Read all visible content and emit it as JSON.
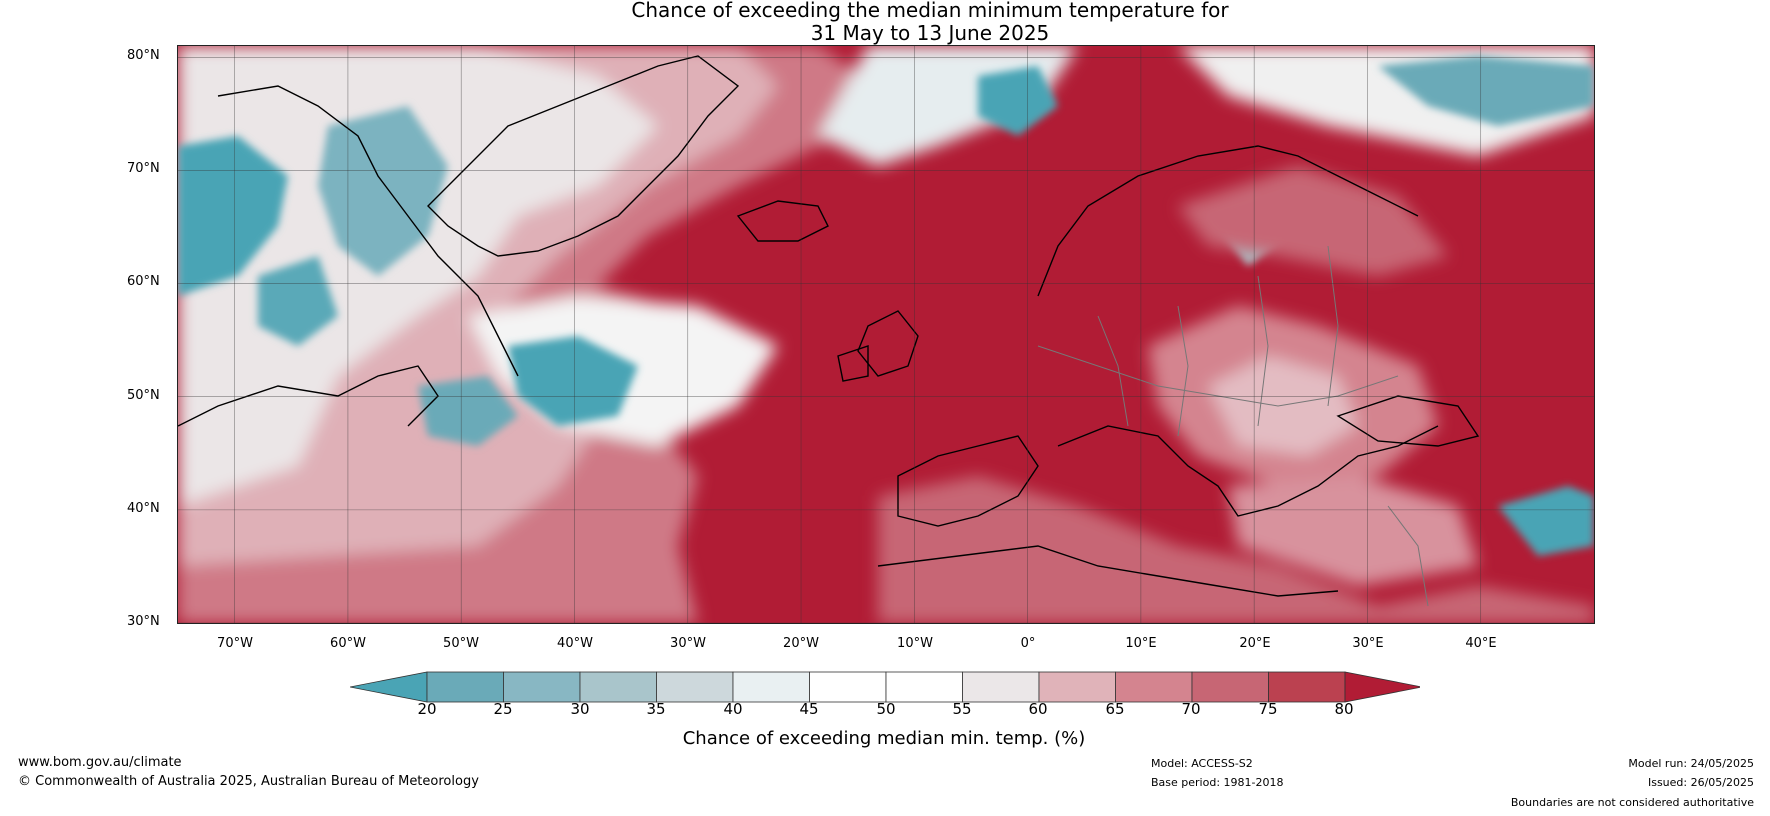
{
  "title": {
    "line1": "Chance of exceeding the median minimum temperature for",
    "line2": "31 May to 13 June 2025"
  },
  "map": {
    "lat_labels": [
      "80°N",
      "70°N",
      "60°N",
      "50°N",
      "40°N",
      "30°N"
    ],
    "lon_labels": [
      "70°W",
      "60°W",
      "50°W",
      "40°W",
      "30°W",
      "20°W",
      "10°W",
      "0°",
      "10°E",
      "20°E",
      "30°E",
      "40°E"
    ],
    "extent": {
      "lon_min": -75,
      "lon_max": 50,
      "lat_min": 30,
      "lat_max": 81
    }
  },
  "colorbar": {
    "title": "Chance of exceeding median min. temp. (%)",
    "ticks": [
      "20",
      "25",
      "30",
      "35",
      "40",
      "45",
      "50",
      "55",
      "60",
      "65",
      "70",
      "75",
      "80"
    ],
    "colors": [
      "#4aa4b5",
      "#6aaab8",
      "#88b7c3",
      "#a9c5cb",
      "#cdd8dc",
      "#e9f0f2",
      "#ffffff",
      "#ffffff",
      "#ebe7e8",
      "#e0b3b9",
      "#d4848f",
      "#c76674",
      "#bb4150",
      "#b11c35"
    ]
  },
  "footer": {
    "url": "www.bom.gov.au/climate",
    "copyright": "© Commonwealth of Australia 2025, Australian Bureau of Meteorology",
    "model": "Model: ACCESS-S2",
    "base_period": "Base period: 1981-2018",
    "model_run": "Model run: 24/05/2025",
    "issued": "Issued: 26/05/2025",
    "disclaimer": "Boundaries are not considered authoritative"
  }
}
